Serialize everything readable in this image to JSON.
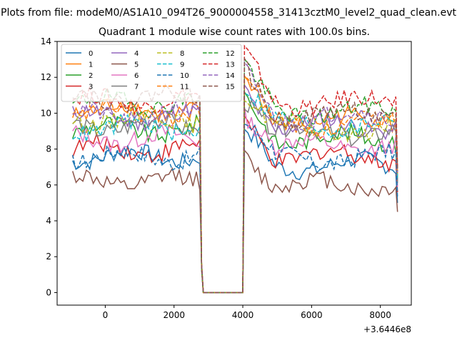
{
  "figure": {
    "suptitle": "Plots from file: modeM0/AS1A10_094T26_9000004558_31413cztM0_level2_quad_clean.evt"
  },
  "chart_data": {
    "type": "line",
    "title": "Quadrant 1 module wise count rates with 100.0s bins.",
    "xlabel": "",
    "ylabel": "",
    "x_offset_label": "+3.6446e8",
    "xlim": [
      -1400,
      8900
    ],
    "ylim": [
      -0.7,
      14
    ],
    "x_ticks": [
      0,
      2000,
      4000,
      6000,
      8000
    ],
    "x_tick_labels": [
      "0",
      "2000",
      "4000",
      "6000",
      "8000"
    ],
    "y_ticks": [
      0,
      2,
      4,
      6,
      8,
      10,
      12,
      14
    ],
    "y_tick_labels": [
      "0",
      "2",
      "4",
      "6",
      "8",
      "10",
      "12",
      "14"
    ],
    "legend_position": "upper-left",
    "legend_columns": 4,
    "x_segments": [
      {
        "start": -950,
        "end": 2750,
        "step": 100
      },
      {
        "start": 4050,
        "end": 8450,
        "step": 100
      }
    ],
    "gap_points": {
      "x": [
        2800,
        2850,
        4000
      ],
      "y": [
        1.5,
        0,
        0
      ]
    },
    "dropoff": {
      "x": 2750,
      "y": 1.5
    },
    "final": {
      "x": 8500,
      "note": "drop to low value at end"
    },
    "series": [
      {
        "name": "0",
        "color": "#1f77b4",
        "dash": "solid",
        "base1": 7.6,
        "base2": 7.1,
        "peak": 8.9,
        "end": 5.0
      },
      {
        "name": "1",
        "color": "#ff7f0e",
        "dash": "solid",
        "base1": 10.2,
        "base2": 9.6,
        "peak": 11.8,
        "end": 6.5
      },
      {
        "name": "2",
        "color": "#2ca02c",
        "dash": "solid",
        "base1": 9.1,
        "base2": 8.6,
        "peak": 10.9,
        "end": 6.2
      },
      {
        "name": "3",
        "color": "#d62728",
        "dash": "solid",
        "base1": 8.0,
        "base2": 7.6,
        "peak": 9.6,
        "end": 5.6
      },
      {
        "name": "4",
        "color": "#9467bd",
        "dash": "solid",
        "base1": 9.8,
        "base2": 9.3,
        "peak": 11.4,
        "end": 6.3
      },
      {
        "name": "5",
        "color": "#8c564b",
        "dash": "solid",
        "base1": 6.2,
        "base2": 6.0,
        "peak": 7.8,
        "end": 4.5
      },
      {
        "name": "6",
        "color": "#e377c2",
        "dash": "solid",
        "base1": 8.6,
        "base2": 8.2,
        "peak": 10.2,
        "end": 5.9
      },
      {
        "name": "7",
        "color": "#7f7f7f",
        "dash": "solid",
        "base1": 9.3,
        "base2": 8.9,
        "peak": 11.0,
        "end": 6.1
      },
      {
        "name": "8",
        "color": "#bcbd22",
        "dash": "dashed",
        "base1": 9.7,
        "base2": 9.1,
        "peak": 11.3,
        "end": 6.4
      },
      {
        "name": "9",
        "color": "#17becf",
        "dash": "dashed",
        "base1": 9.2,
        "base2": 9.4,
        "peak": 11.5,
        "end": 6.3
      },
      {
        "name": "10",
        "color": "#1f77b4",
        "dash": "dashed",
        "base1": 7.6,
        "base2": 7.5,
        "peak": 9.5,
        "end": 5.3
      },
      {
        "name": "11",
        "color": "#ff7f0e",
        "dash": "dashed",
        "base1": 10.0,
        "base2": 9.4,
        "peak": 11.9,
        "end": 6.6
      },
      {
        "name": "12",
        "color": "#2ca02c",
        "dash": "dashed",
        "base1": 10.6,
        "base2": 10.1,
        "peak": 12.6,
        "end": 6.9
      },
      {
        "name": "13",
        "color": "#d62728",
        "dash": "dashed",
        "base1": 10.7,
        "base2": 10.6,
        "peak": 13.2,
        "end": 7.0
      },
      {
        "name": "14",
        "color": "#9467bd",
        "dash": "dashed",
        "base1": 9.9,
        "base2": 9.8,
        "peak": 12.2,
        "end": 6.7
      },
      {
        "name": "15",
        "color": "#8c564b",
        "dash": "dashed",
        "base1": 10.9,
        "base2": 9.9,
        "peak": 12.4,
        "end": 6.8
      }
    ]
  }
}
